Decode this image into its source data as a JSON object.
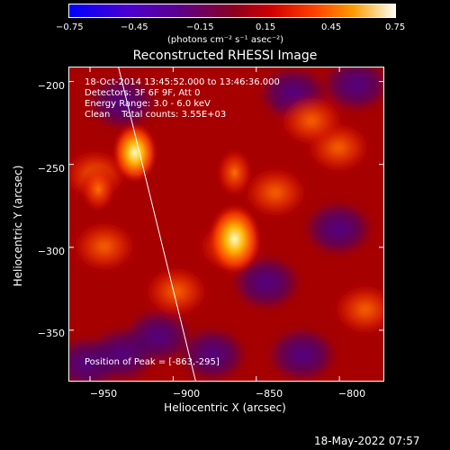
{
  "colorbar": {
    "ticks": [
      "−0.75",
      "−0.45",
      "−0.15",
      "0.15",
      "0.45",
      "0.75"
    ],
    "units_label": "(photons cm⁻² s⁻¹ asec⁻²)"
  },
  "plot": {
    "title": "Reconstructed RHESSI Image",
    "info_lines": [
      "18-Oct-2014 13:45:52.000 to 13:46:36.000",
      "Detectors: 3F 6F 9F, Att 0",
      "Energy Range: 3.0 - 6.0 keV",
      "Clean    Total counts: 3.55E+03"
    ],
    "peak_label": "Position of Peak = [-863,-295]",
    "xlabel": "Heliocentric X (arcsec)",
    "ylabel": "Heliocentric Y (arcsec)",
    "xticks": [
      "−950",
      "−900",
      "−850",
      "−800"
    ],
    "yticks": [
      "−200",
      "−250",
      "−300",
      "−350"
    ]
  },
  "chart_data": {
    "type": "heatmap",
    "title": "Reconstructed RHESSI Image",
    "xlabel": "Heliocentric X (arcsec)",
    "ylabel": "Heliocentric Y (arcsec)",
    "xlim": [
      -963,
      -773
    ],
    "ylim": [
      -381,
      -191
    ],
    "colorbar_range": [
      -0.75,
      0.75
    ],
    "colorbar_ticks": [
      -0.75,
      -0.45,
      -0.15,
      0.15,
      0.45,
      0.75
    ],
    "sources": [
      {
        "x": -923,
        "y": -243,
        "intensity": 0.55
      },
      {
        "x": -863,
        "y": -295,
        "intensity": 0.75
      },
      {
        "x": -863,
        "y": -255,
        "intensity": 0.35
      },
      {
        "x": -945,
        "y": -265,
        "intensity": 0.3
      }
    ],
    "peak": [
      -863,
      -295
    ]
  },
  "footer": {
    "timestamp": "18-May-2022 07:57"
  }
}
